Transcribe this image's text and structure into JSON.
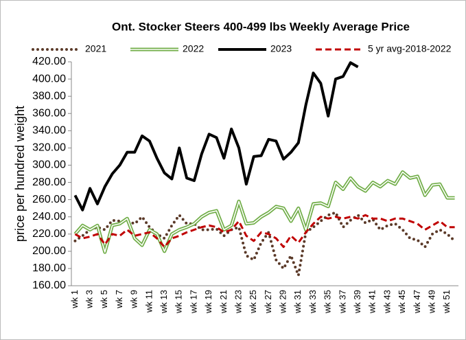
{
  "chart_data": {
    "type": "line",
    "title": "Ont. Stocker Steers 400-499 lbs Weekly Average Price",
    "y_label": "price per hundred weight",
    "categories": [
      "wk 1",
      null,
      "wk 3",
      null,
      "wk 5",
      null,
      "wk 7",
      null,
      "wk 9",
      null,
      "wk 11",
      null,
      "wk 13",
      null,
      "wk 15",
      null,
      "wk 17",
      null,
      "wk 19",
      null,
      "wk 21",
      null,
      "wk 23",
      null,
      "wk 25",
      null,
      "wk 27",
      null,
      "wk 29",
      null,
      "wk 31",
      null,
      "wk 33",
      null,
      "wk 35",
      null,
      "wk 37",
      null,
      "wk 39",
      null,
      "wk 41",
      null,
      "wk 43",
      null,
      "wk 45",
      null,
      "wk 47",
      null,
      "wk 49",
      null,
      "wk 51",
      null
    ],
    "ylim": [
      160,
      420
    ],
    "yticks": [
      {
        "value": 160,
        "label": "160.00"
      },
      {
        "value": 180,
        "label": "180.00"
      },
      {
        "value": 200,
        "label": "200.00"
      },
      {
        "value": 220,
        "label": "220.00"
      },
      {
        "value": 240,
        "label": "240.00"
      },
      {
        "value": 260,
        "label": "260.00"
      },
      {
        "value": 280,
        "label": "280.00"
      },
      {
        "value": 300,
        "label": "300.00"
      },
      {
        "value": 320,
        "label": "320.00"
      },
      {
        "value": 340,
        "label": "340.00"
      },
      {
        "value": 360,
        "label": "360.00"
      },
      {
        "value": 380,
        "label": "380.00"
      },
      {
        "value": 400,
        "label": "400.00"
      },
      {
        "value": 420,
        "label": "420.00"
      }
    ],
    "legend": "top",
    "series": [
      {
        "name": "2021",
        "color": "#5b3a29",
        "style": "dotted",
        "values": [
          212,
          218,
          225,
          228,
          225,
          236,
          235,
          235,
          232,
          240,
          228,
          220,
          215,
          230,
          242,
          232,
          232,
          225,
          225,
          226,
          218,
          225,
          228,
          195,
          190,
          210,
          222,
          190,
          180,
          195,
          172,
          222,
          228,
          235,
          242,
          245,
          228,
          236,
          242,
          233,
          237,
          225,
          230,
          232,
          225,
          215,
          213,
          205,
          220,
          225,
          220,
          212
        ]
      },
      {
        "name": "2022",
        "color": "#70ad47",
        "style": "double",
        "values": [
          220,
          230,
          225,
          230,
          199,
          230,
          232,
          238,
          215,
          207,
          225,
          220,
          200,
          220,
          225,
          228,
          232,
          240,
          245,
          247,
          225,
          230,
          258,
          232,
          233,
          240,
          245,
          252,
          250,
          235,
          250,
          225,
          255,
          256,
          252,
          280,
          272,
          285,
          275,
          270,
          280,
          275,
          282,
          278,
          292,
          285,
          287,
          265,
          277,
          278,
          262,
          262
        ]
      },
      {
        "name": "2023",
        "color": "#000000",
        "style": "solid",
        "values": [
          265,
          248,
          273,
          255,
          275,
          290,
          300,
          315,
          315,
          334,
          328,
          308,
          291,
          284,
          320,
          285,
          282,
          313,
          336,
          332,
          308,
          342,
          320,
          278,
          310,
          311,
          330,
          328,
          307,
          315,
          326,
          370,
          407,
          395,
          357,
          400,
          403,
          419,
          414,
          null,
          null,
          null,
          null,
          null,
          null,
          null,
          null,
          null,
          null,
          null,
          null,
          null
        ]
      },
      {
        "name": "5 yr avg-2018-2022",
        "color": "#c00000",
        "style": "dashed",
        "values": [
          220,
          215,
          217,
          220,
          208,
          220,
          218,
          225,
          218,
          220,
          222,
          215,
          205,
          215,
          218,
          222,
          225,
          228,
          230,
          228,
          222,
          225,
          235,
          218,
          212,
          222,
          220,
          215,
          205,
          218,
          210,
          222,
          232,
          240,
          238,
          240,
          238,
          240,
          238,
          242,
          238,
          238,
          235,
          238,
          238,
          235,
          232,
          225,
          230,
          235,
          228,
          228
        ]
      }
    ]
  }
}
